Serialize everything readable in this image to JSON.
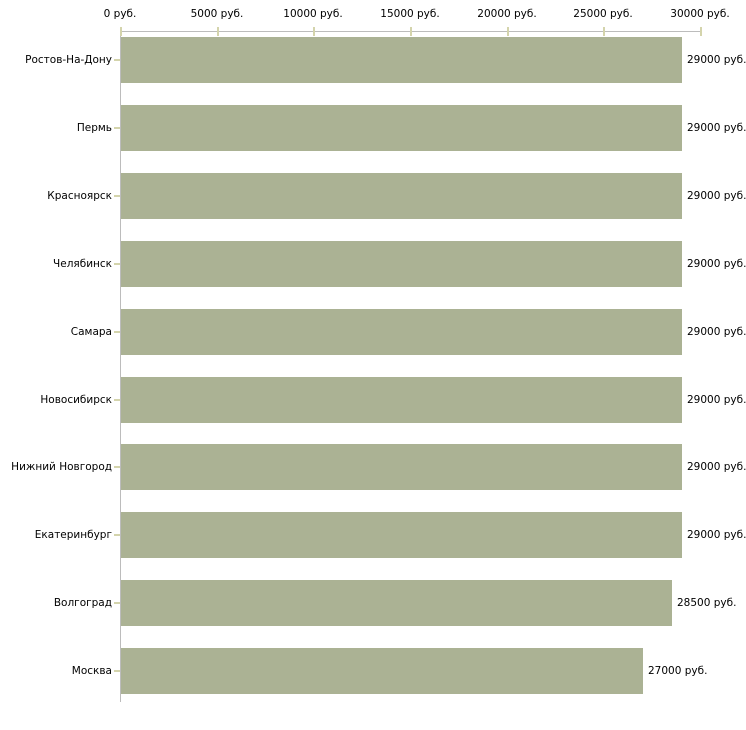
{
  "chart_data": {
    "type": "bar",
    "orientation": "horizontal",
    "title": "",
    "xlabel": "",
    "ylabel": "",
    "xlim": [
      0,
      30000
    ],
    "x_tick_interval": 5000,
    "x_tick_labels": [
      "0 руб.",
      "5000 руб.",
      "10000 руб.",
      "15000 руб.",
      "20000 руб.",
      "25000 руб.",
      "30000 руб."
    ],
    "categories": [
      "Ростов-На-Дону",
      "Пермь",
      "Красноярск",
      "Челябинск",
      "Самара",
      "Новосибирск",
      "Нижний Новгород",
      "Екатеринбург",
      "Волгоград",
      "Москва"
    ],
    "values": [
      29000,
      29000,
      29000,
      29000,
      29000,
      29000,
      29000,
      29000,
      28500,
      27000
    ],
    "value_labels": [
      "29000 руб.",
      "29000 руб.",
      "29000 руб.",
      "29000 руб.",
      "29000 руб.",
      "29000 руб.",
      "29000 руб.",
      "29000 руб.",
      "28500 руб.",
      "27000 руб."
    ],
    "grid": false,
    "legend": "none",
    "colors": {
      "bar": "#abb294",
      "axis_line": "#bcbcbc",
      "tick": "#d4d4ac",
      "text": "#000000",
      "background": "#ffffff"
    }
  }
}
